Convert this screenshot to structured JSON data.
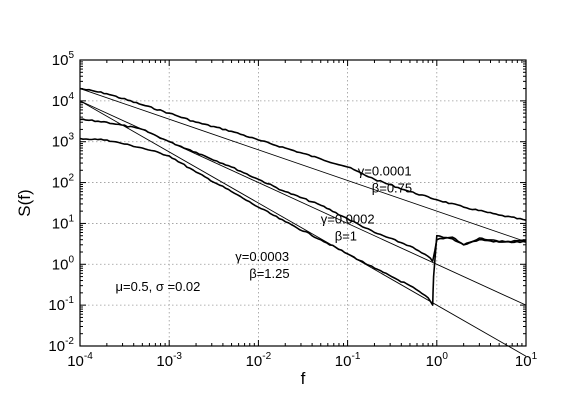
{
  "chart_data": {
    "type": "line",
    "xlabel": "f",
    "ylabel": "S(f)",
    "x_scale": "log",
    "y_scale": "log",
    "xlim": [
      0.0001,
      10
    ],
    "ylim": [
      0.01,
      100000
    ],
    "grid": true,
    "x_ticks": [
      {
        "base": "10",
        "exp": "-4",
        "value": 0.0001
      },
      {
        "base": "10",
        "exp": "-3",
        "value": 0.001
      },
      {
        "base": "10",
        "exp": "-2",
        "value": 0.01
      },
      {
        "base": "10",
        "exp": "-1",
        "value": 0.1
      },
      {
        "base": "10",
        "exp": "0",
        "value": 1
      },
      {
        "base": "10",
        "exp": "1",
        "value": 10
      }
    ],
    "y_ticks": [
      {
        "base": "10",
        "exp": "-2",
        "value": 0.01
      },
      {
        "base": "10",
        "exp": "-1",
        "value": 0.1
      },
      {
        "base": "10",
        "exp": "0",
        "value": 1
      },
      {
        "base": "10",
        "exp": "1",
        "value": 10
      },
      {
        "base": "10",
        "exp": "2",
        "value": 100
      },
      {
        "base": "10",
        "exp": "3",
        "value": 1000
      },
      {
        "base": "10",
        "exp": "4",
        "value": 10000
      },
      {
        "base": "10",
        "exp": "5",
        "value": 100000
      }
    ],
    "series": [
      {
        "x": [
          0.0001,
          0.0002,
          0.0005,
          0.001,
          0.002,
          0.005,
          0.01,
          0.02,
          0.05,
          0.1,
          0.2,
          0.5,
          1,
          2,
          5,
          10
        ],
        "y": [
          20000,
          15000,
          8000,
          5000,
          3000,
          1800,
          1100,
          700,
          380,
          240,
          120,
          60,
          38,
          25,
          16,
          12
        ]
      },
      {
        "x": [
          0.0001,
          0.0002,
          0.0005,
          0.001,
          0.002,
          0.005,
          0.01,
          0.02,
          0.05,
          0.1,
          0.2,
          0.5,
          0.85,
          0.9,
          1.0,
          1.5,
          2,
          3,
          5,
          10
        ],
        "y": [
          3500,
          3000,
          2000,
          1000,
          550,
          240,
          120,
          60,
          28,
          13,
          6,
          2.8,
          1.4,
          1.2,
          4.0,
          4.6,
          3.0,
          4.4,
          3.6,
          3.8
        ]
      },
      {
        "x": [
          0.0001,
          0.0002,
          0.0005,
          0.001,
          0.002,
          0.005,
          0.01,
          0.02,
          0.05,
          0.1,
          0.2,
          0.5,
          0.8,
          0.9,
          0.92,
          1.0,
          1.5,
          2,
          3,
          5,
          10
        ],
        "y": [
          1200,
          1100,
          700,
          450,
          180,
          60,
          25,
          11,
          4,
          1.8,
          0.8,
          0.3,
          0.15,
          0.1,
          0.5,
          5.0,
          4.2,
          3.0,
          4.0,
          3.5,
          3.5
        ]
      }
    ],
    "fit_lines": [
      {
        "x": [
          0.0001,
          10
        ],
        "y": [
          20000,
          3.56
        ]
      },
      {
        "x": [
          0.0001,
          10
        ],
        "y": [
          10000,
          0.1
        ]
      },
      {
        "x": [
          0.0001,
          10
        ],
        "y": [
          10000,
          0.00562
        ]
      }
    ],
    "annotations": [
      {
        "lines": [
          "γ=0.0001",
          "β=0.75"
        ],
        "x": 0.13,
        "y": 150
      },
      {
        "lines": [
          "γ=0.0002",
          "β=1"
        ],
        "x": 0.05,
        "y": 10
      },
      {
        "lines": [
          "γ=0.0003",
          "β=1.25"
        ],
        "x": 0.0055,
        "y": 1.2
      },
      {
        "lines": [
          "μ=0.5, σ =0.02"
        ],
        "x": 0.00025,
        "y": 0.22
      }
    ]
  }
}
